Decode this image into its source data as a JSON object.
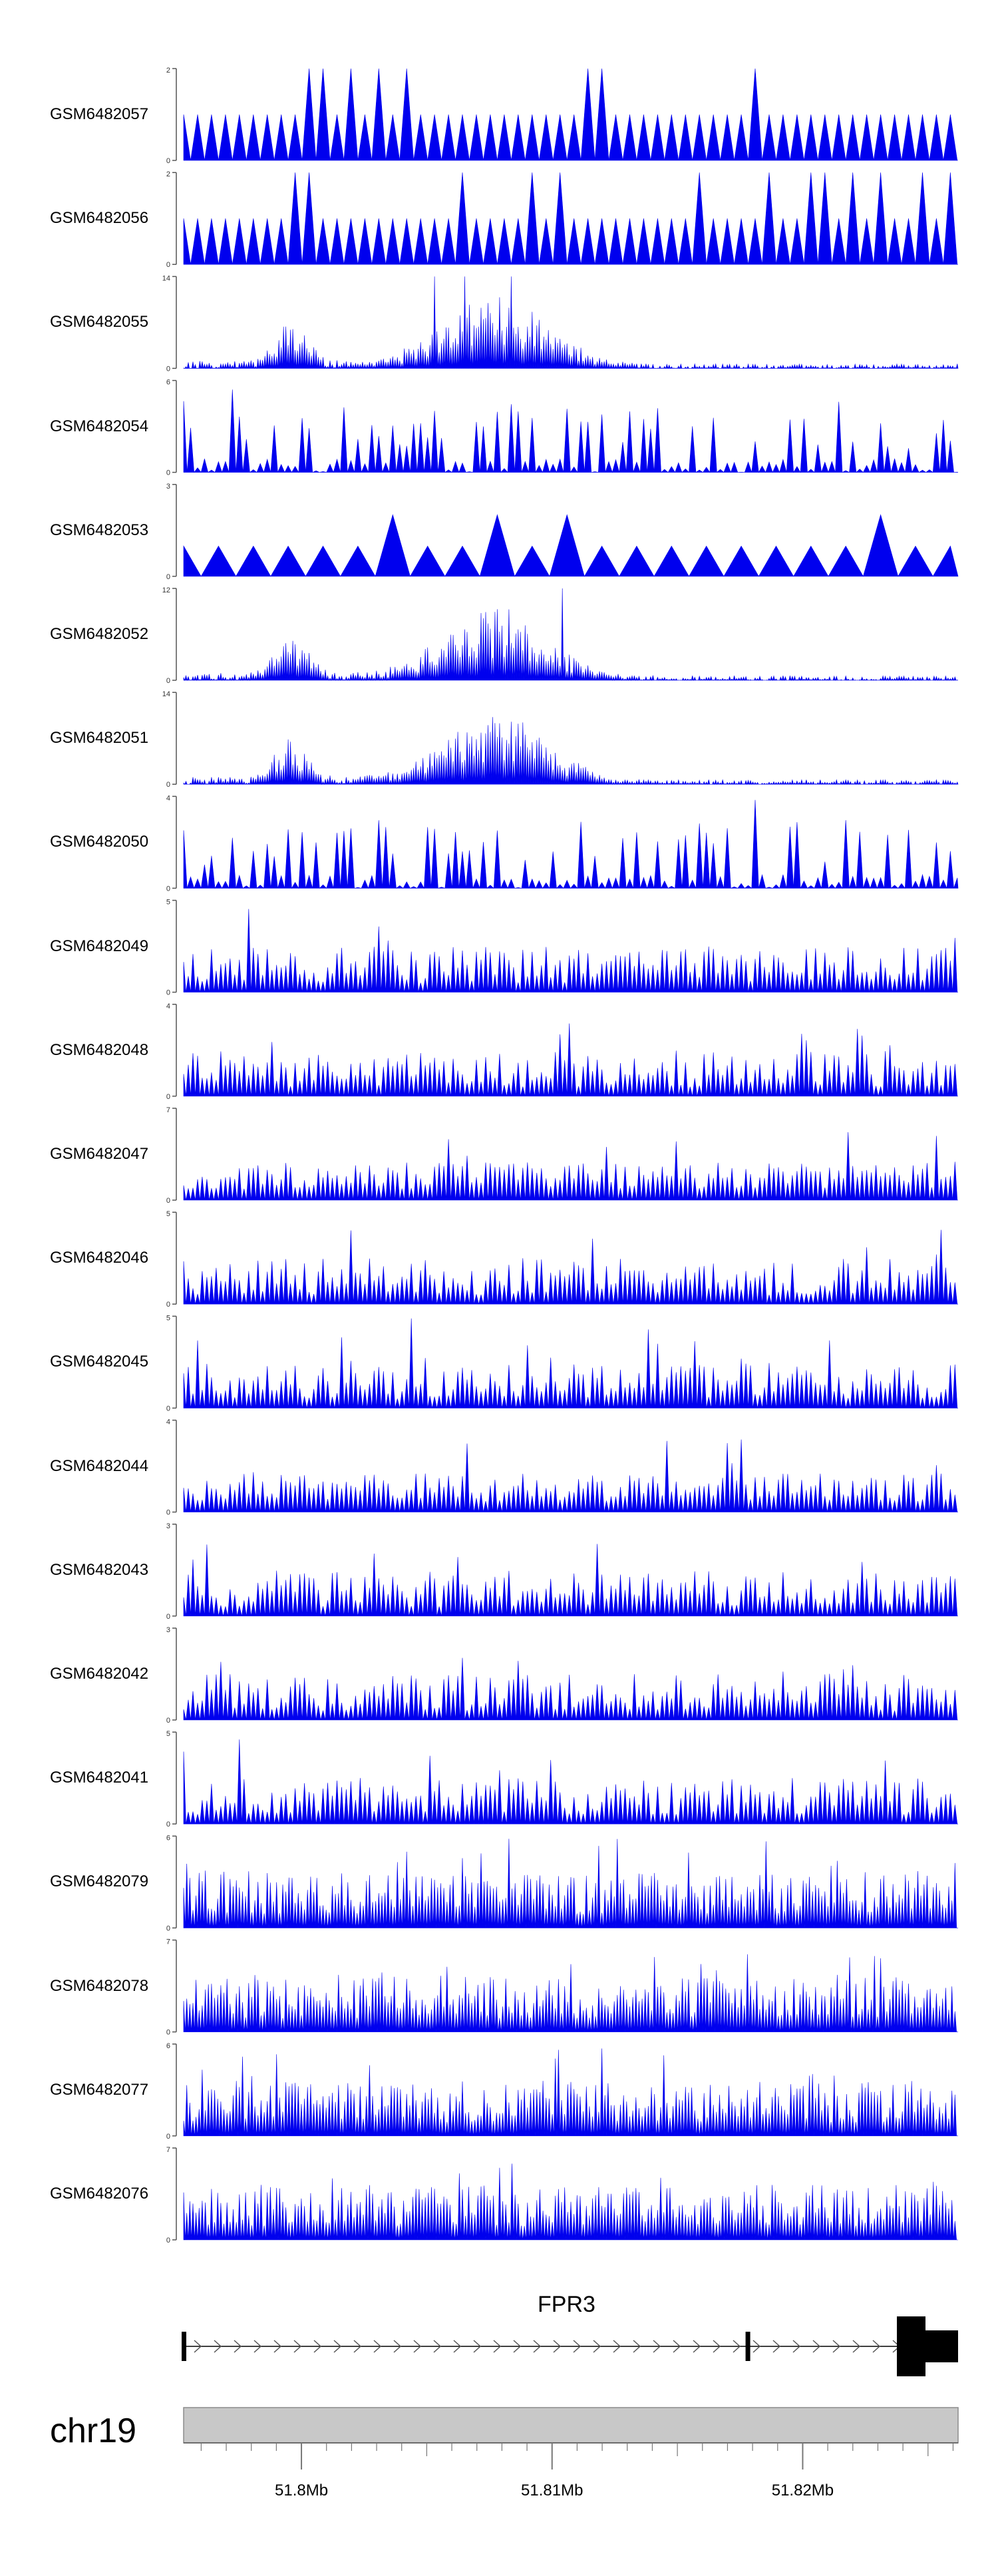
{
  "chart_data": {
    "type": "area",
    "title": "",
    "xlabel": "",
    "ylabel": "",
    "genome": {
      "chromosome": "chr19",
      "xlim_mb": [
        51.7953,
        51.8262
      ],
      "ticks_mb": [
        51.8,
        51.81,
        51.82
      ],
      "tick_labels": [
        "51.8Mb",
        "51.81Mb",
        "51.82Mb"
      ]
    },
    "gene": {
      "name": "FPR3",
      "start_mb": 51.7953,
      "end_mb": 51.8262,
      "exons_mb": [
        [
          51.7953,
          51.7954
        ],
        [
          51.8178,
          51.818
        ],
        [
          51.824,
          51.8262
        ]
      ],
      "strand": "+"
    },
    "series": [
      {
        "name": "GSM6482057",
        "ymax": 2,
        "style": "sparse",
        "seed": 57
      },
      {
        "name": "GSM6482056",
        "ymax": 2,
        "style": "sparse",
        "seed": 56
      },
      {
        "name": "GSM6482055",
        "ymax": 14,
        "style": "cluster",
        "seed": 55
      },
      {
        "name": "GSM6482054",
        "ymax": 6,
        "style": "spiky",
        "seed": 54
      },
      {
        "name": "GSM6482053",
        "ymax": 3,
        "style": "verysparse",
        "seed": 53
      },
      {
        "name": "GSM6482052",
        "ymax": 12,
        "style": "cluster",
        "seed": 52
      },
      {
        "name": "GSM6482051",
        "ymax": 14,
        "style": "cluster",
        "seed": 51
      },
      {
        "name": "GSM6482050",
        "ymax": 4,
        "style": "spiky",
        "seed": 50
      },
      {
        "name": "GSM6482049",
        "ymax": 5,
        "style": "dense",
        "seed": 49
      },
      {
        "name": "GSM6482048",
        "ymax": 4,
        "style": "dense",
        "seed": 48
      },
      {
        "name": "GSM6482047",
        "ymax": 7,
        "style": "lowdense",
        "seed": 47
      },
      {
        "name": "GSM6482046",
        "ymax": 5,
        "style": "dense",
        "seed": 46
      },
      {
        "name": "GSM6482045",
        "ymax": 5,
        "style": "dense",
        "seed": 45
      },
      {
        "name": "GSM6482044",
        "ymax": 4,
        "style": "lowdense",
        "seed": 44
      },
      {
        "name": "GSM6482043",
        "ymax": 3,
        "style": "dense",
        "seed": 43
      },
      {
        "name": "GSM6482042",
        "ymax": 3,
        "style": "dense",
        "seed": 42
      },
      {
        "name": "GSM6482041",
        "ymax": 5,
        "style": "dense",
        "seed": 41
      },
      {
        "name": "GSM6482079",
        "ymax": 6,
        "style": "full",
        "seed": 79
      },
      {
        "name": "GSM6482078",
        "ymax": 7,
        "style": "full",
        "seed": 78
      },
      {
        "name": "GSM6482077",
        "ymax": 6,
        "style": "full",
        "seed": 77
      },
      {
        "name": "GSM6482076",
        "ymax": 7,
        "style": "full",
        "seed": 76
      }
    ]
  },
  "colors": {
    "signal": "#0000ee",
    "axis": "#555555",
    "gene": "#000000",
    "ideogram_fill": "#c8c8c8",
    "ideogram_stroke": "#8a8a8a"
  }
}
